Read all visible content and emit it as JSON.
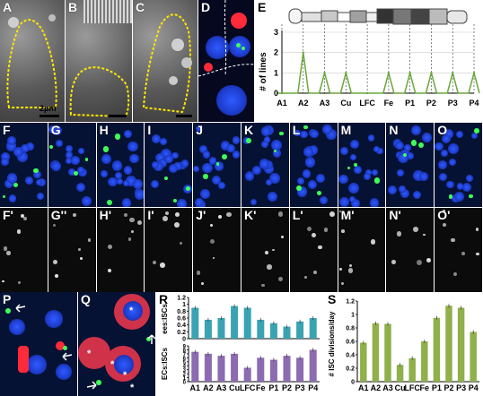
{
  "panels": {
    "A": {
      "label": "A",
      "scale": "2μm"
    },
    "B": {
      "label": "B"
    },
    "C": {
      "label": "C"
    },
    "D": {
      "label": "D"
    },
    "E": {
      "label": "E"
    },
    "F": {
      "label": "F"
    },
    "G": {
      "label": "G"
    },
    "H": {
      "label": "H"
    },
    "I": {
      "label": "I"
    },
    "J": {
      "label": "J"
    },
    "K": {
      "label": "K"
    },
    "L": {
      "label": "L"
    },
    "M": {
      "label": "M"
    },
    "N": {
      "label": "N"
    },
    "O": {
      "label": "O"
    },
    "F2": {
      "label": "F'"
    },
    "G2": {
      "label": "G''"
    },
    "H2": {
      "label": "H'"
    },
    "I2": {
      "label": "I'"
    },
    "J2": {
      "label": "J'"
    },
    "K2": {
      "label": "K'"
    },
    "L2": {
      "label": "L'"
    },
    "M2": {
      "label": "M'"
    },
    "N2": {
      "label": "N'"
    },
    "O2": {
      "label": "O'"
    },
    "P": {
      "label": "P"
    },
    "Q": {
      "label": "Q"
    },
    "R": {
      "label": "R"
    },
    "S": {
      "label": "S"
    }
  },
  "colors": {
    "teal": "#3aa3b2",
    "purple": "#8c6bb0",
    "green": "#8fb04a",
    "line_green": "#6aa83a"
  },
  "chart_data": [
    {
      "id": "E",
      "type": "line",
      "ylabel": "# of lines",
      "categories": [
        "A1",
        "A2",
        "A3",
        "Cu",
        "LFC",
        "Fe",
        "P1",
        "P2",
        "P3",
        "P4"
      ],
      "values": [
        0,
        2,
        1,
        1,
        0,
        1,
        1,
        1,
        1,
        1
      ],
      "ylim": [
        0,
        3
      ],
      "yticks": [
        "0",
        "1",
        "2",
        "3"
      ]
    },
    {
      "id": "R_top",
      "type": "bar",
      "ylabel": "ees:ISCs",
      "categories": [
        "A1",
        "A2",
        "A3",
        "Cu",
        "LFC",
        "Fe",
        "P1",
        "P2",
        "P3",
        "P4"
      ],
      "values": [
        0.9,
        0.55,
        0.6,
        0.95,
        0.9,
        0.55,
        0.45,
        0.35,
        0.5,
        0.6
      ],
      "ylim": [
        0,
        1.2
      ],
      "yticks": [
        "0",
        "0.2",
        "0.4",
        "0.6",
        "0.8",
        "1",
        "1.2"
      ]
    },
    {
      "id": "R_bottom",
      "type": "bar",
      "ylabel": "ECs:ISCs",
      "categories": [
        "A1",
        "A2",
        "A3",
        "Cu",
        "LFC",
        "Fe",
        "P1",
        "P2",
        "P3",
        "P4"
      ],
      "values": [
        7.5,
        7.0,
        6.5,
        7.0,
        3.5,
        6.0,
        5.5,
        6.5,
        6.0,
        8.0
      ],
      "ylim": [
        0,
        9
      ],
      "yticks": [
        "0",
        "1",
        "2",
        "3",
        "4",
        "5",
        "6",
        "7",
        "8",
        "9"
      ]
    },
    {
      "id": "S",
      "type": "bar",
      "ylabel": "# ISC divisions/day",
      "categories": [
        "A1",
        "A2",
        "A3",
        "Cu",
        "LFC",
        "Fe",
        "P1",
        "P2",
        "P3",
        "P4"
      ],
      "values": [
        0.58,
        0.87,
        0.86,
        0.25,
        0.35,
        0.6,
        0.95,
        1.13,
        1.1,
        0.74
      ],
      "ylim": [
        0,
        1.2
      ],
      "yticks": [
        "0",
        "0.2",
        "0.4",
        "0.6",
        "0.8",
        "1",
        "1.2"
      ]
    }
  ]
}
